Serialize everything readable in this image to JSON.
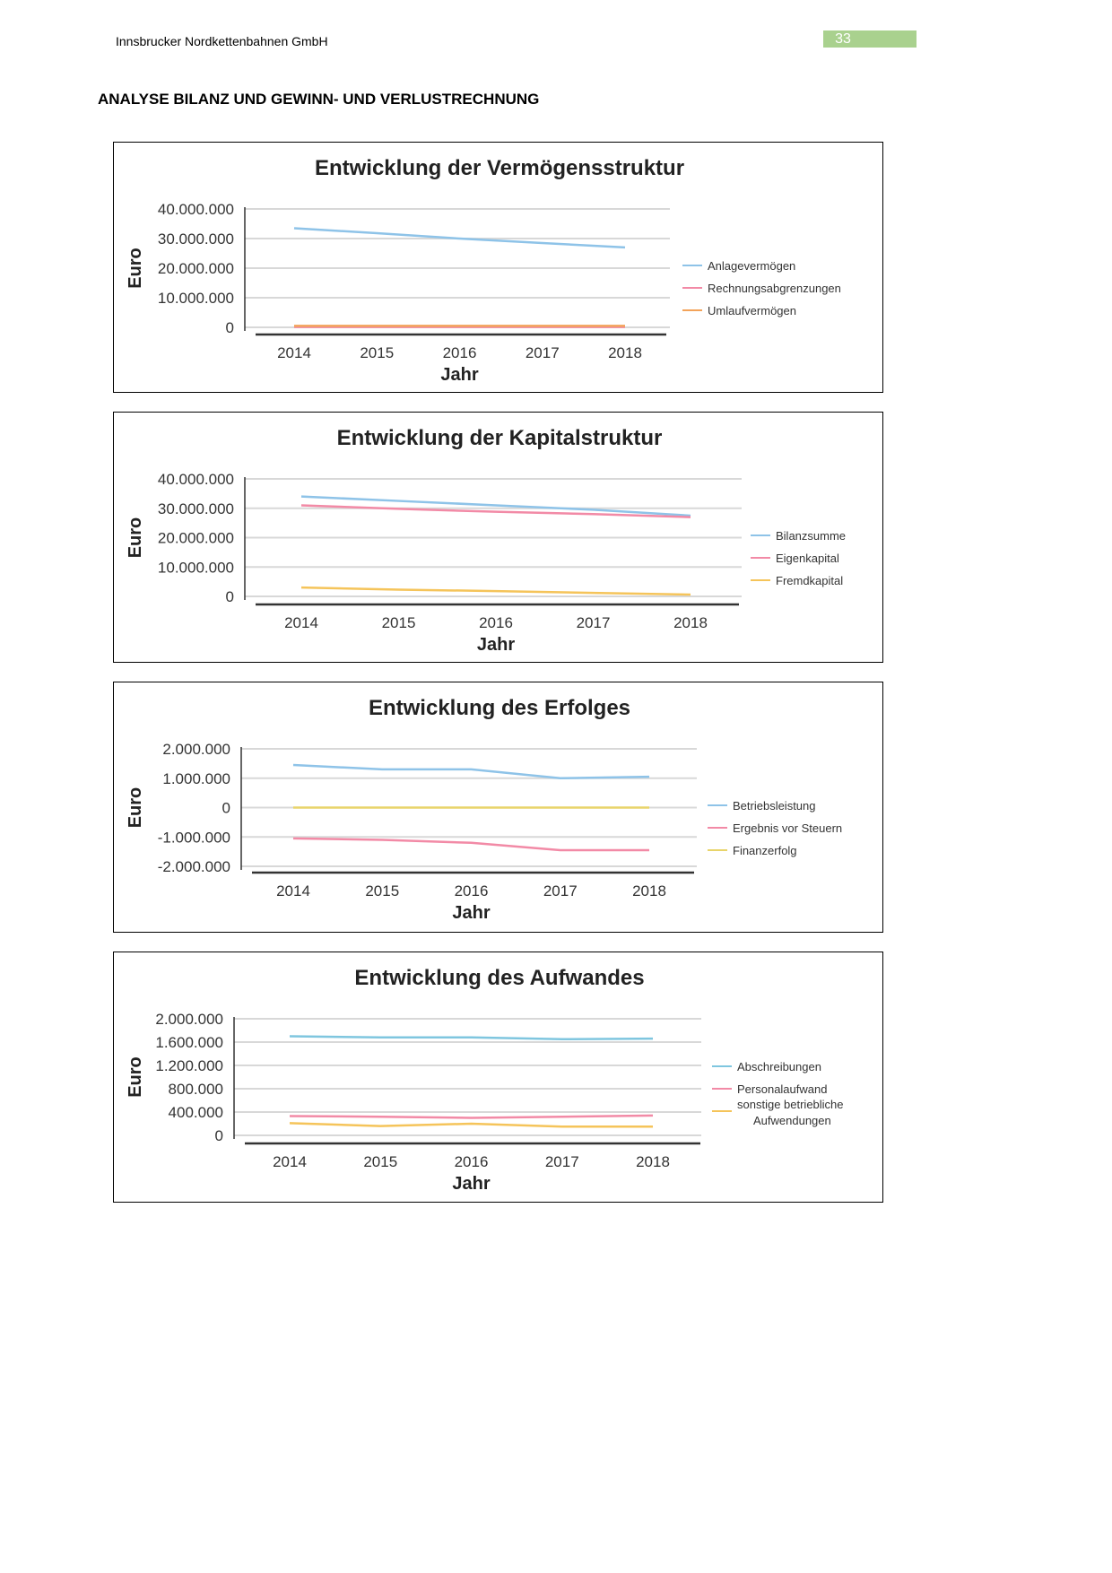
{
  "header": {
    "company": "Innsbrucker Nordkettenbahnen GmbH",
    "page_number": "33"
  },
  "section_title": "ANALYSE BILANZ UND GEWINN- UND VERLUSTRECHNUNG",
  "chart_data": [
    {
      "type": "line",
      "title": "Entwicklung der Vermögensstruktur",
      "xlabel": "Jahr",
      "ylabel": "Euro",
      "categories": [
        "2014",
        "2015",
        "2016",
        "2017",
        "2018"
      ],
      "ylim": [
        0,
        40000000
      ],
      "yticks": [
        0,
        10000000,
        20000000,
        30000000,
        40000000
      ],
      "ytick_labels": [
        "0",
        "10.000.000",
        "20.000.000",
        "30.000.000",
        "40.000.000"
      ],
      "legend_position": "right",
      "series": [
        {
          "name": "Anlagevermögen",
          "color": "#8ec3e8",
          "values": [
            33500000,
            31800000,
            30000000,
            28500000,
            27000000
          ]
        },
        {
          "name": "Rechnungsabgrenzungen",
          "color": "#f28aa6",
          "values": [
            100000,
            100000,
            100000,
            100000,
            100000
          ]
        },
        {
          "name": "Umlaufvermögen",
          "color": "#f3a35a",
          "values": [
            500000,
            500000,
            500000,
            500000,
            500000
          ]
        }
      ]
    },
    {
      "type": "line",
      "title": "Entwicklung der Kapitalstruktur",
      "xlabel": "Jahr",
      "ylabel": "Euro",
      "categories": [
        "2014",
        "2015",
        "2016",
        "2017",
        "2018"
      ],
      "ylim": [
        0,
        40000000
      ],
      "yticks": [
        0,
        10000000,
        20000000,
        30000000,
        40000000
      ],
      "ytick_labels": [
        "0",
        "10.000.000",
        "20.000.000",
        "30.000.000",
        "40.000.000"
      ],
      "legend_position": "right",
      "series": [
        {
          "name": "Bilanzsumme",
          "color": "#8ec3e8",
          "values": [
            34000000,
            32500000,
            31000000,
            29500000,
            27500000
          ]
        },
        {
          "name": "Eigenkapital",
          "color": "#f28aa6",
          "values": [
            31000000,
            29800000,
            28800000,
            28000000,
            27000000
          ]
        },
        {
          "name": "Fremdkapital",
          "color": "#f5c45a",
          "values": [
            3000000,
            2300000,
            1800000,
            1200000,
            600000
          ]
        }
      ]
    },
    {
      "type": "line",
      "title": "Entwicklung des Erfolges",
      "xlabel": "Jahr",
      "ylabel": "Euro",
      "categories": [
        "2014",
        "2015",
        "2016",
        "2017",
        "2018"
      ],
      "ylim": [
        -2000000,
        2000000
      ],
      "yticks": [
        -2000000,
        -1000000,
        0,
        1000000,
        2000000
      ],
      "ytick_labels": [
        "-2.000.000",
        "-1.000.000",
        "0",
        "1.000.000",
        "2.000.000"
      ],
      "legend_position": "right",
      "series": [
        {
          "name": "Betriebsleistung",
          "color": "#8ec3e8",
          "values": [
            1450000,
            1300000,
            1300000,
            1000000,
            1050000
          ]
        },
        {
          "name": "Ergebnis vor Steuern",
          "color": "#f28aa6",
          "values": [
            -1050000,
            -1100000,
            -1200000,
            -1450000,
            -1450000
          ]
        },
        {
          "name": "Finanzerfolg",
          "color": "#e8d46a",
          "values": [
            0,
            0,
            0,
            0,
            0
          ]
        }
      ]
    },
    {
      "type": "line",
      "title": "Entwicklung des Aufwandes",
      "xlabel": "Jahr",
      "ylabel": "Euro",
      "categories": [
        "2014",
        "2015",
        "2016",
        "2017",
        "2018"
      ],
      "ylim": [
        0,
        2000000
      ],
      "yticks": [
        0,
        400000,
        800000,
        1200000,
        1600000,
        2000000
      ],
      "ytick_labels": [
        "0",
        "400.000",
        "800.000",
        "1.200.000",
        "1.600.000",
        "2.000.000"
      ],
      "legend_position": "right",
      "series": [
        {
          "name": "Abschreibungen",
          "color": "#7fc6df",
          "values": [
            1700000,
            1680000,
            1680000,
            1650000,
            1660000
          ]
        },
        {
          "name": "Personalaufwand",
          "color": "#f28aa6",
          "values": [
            330000,
            320000,
            300000,
            320000,
            340000
          ]
        },
        {
          "name": "sonstige betriebliche Aufwendungen",
          "legend_lines": [
            "sonstige betriebliche",
            "Aufwendungen"
          ],
          "color": "#f5c45a",
          "values": [
            210000,
            160000,
            200000,
            150000,
            150000
          ]
        }
      ]
    }
  ]
}
